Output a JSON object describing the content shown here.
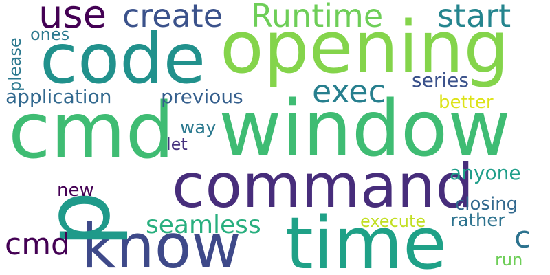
{
  "words": {
    "window": {
      "text": "window",
      "color": "#3fbc73"
    },
    "cmd_big": {
      "text": "cmd",
      "color": "#3fbc73"
    },
    "opening": {
      "text": "opening",
      "color": "#84d44b"
    },
    "code": {
      "text": "code",
      "color": "#21918c"
    },
    "command": {
      "text": "command",
      "color": "#472d7b"
    },
    "time": {
      "text": "time",
      "color": "#1fa187"
    },
    "know": {
      "text": "know",
      "color": "#3e4989"
    },
    "p": {
      "text": "p",
      "color": "#1f9a8a"
    },
    "use": {
      "text": "use",
      "color": "#440154"
    },
    "create": {
      "text": "create",
      "color": "#3b528b"
    },
    "runtime": {
      "text": "Runtime",
      "color": "#6ece58"
    },
    "start": {
      "text": "start",
      "color": "#25858e"
    },
    "exec": {
      "text": "exec",
      "color": "#277f8e"
    },
    "cmd_small": {
      "text": "cmd",
      "color": "#440154"
    },
    "seamless": {
      "text": "seamless",
      "color": "#29af7f"
    },
    "c": {
      "text": "c",
      "color": "#2c728e"
    },
    "application": {
      "text": "application",
      "color": "#31688e"
    },
    "previous": {
      "text": "previous",
      "color": "#355f8d"
    },
    "series": {
      "text": "series",
      "color": "#3b528b"
    },
    "better": {
      "text": "better",
      "color": "#dde318"
    },
    "ones": {
      "text": "ones",
      "color": "#2a788e"
    },
    "please": {
      "text": "please",
      "color": "#2a788e"
    },
    "way": {
      "text": "way",
      "color": "#2a788e"
    },
    "let": {
      "text": "let",
      "color": "#46327e"
    },
    "new": {
      "text": "new",
      "color": "#440154"
    },
    "anyone": {
      "text": "anyone",
      "color": "#1f9e89"
    },
    "closing": {
      "text": "closing",
      "color": "#31688e"
    },
    "rather": {
      "text": "rather",
      "color": "#2c728e"
    },
    "execute": {
      "text": "execute",
      "color": "#c2df23"
    },
    "run": {
      "text": "run",
      "color": "#6ece58"
    }
  }
}
